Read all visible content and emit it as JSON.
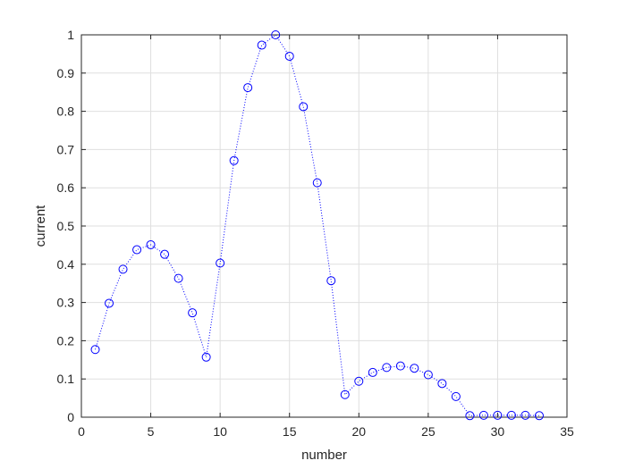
{
  "chart_data": {
    "type": "line",
    "title": "",
    "xlabel": "number",
    "ylabel": "current",
    "xlim": [
      0,
      35
    ],
    "ylim": [
      0,
      1
    ],
    "xticks": [
      0,
      5,
      10,
      15,
      20,
      25,
      30,
      35
    ],
    "yticks": [
      0,
      0.1,
      0.2,
      0.3,
      0.4,
      0.5,
      0.6,
      0.7,
      0.8,
      0.9,
      1
    ],
    "xtick_labels": [
      "0",
      "5",
      "10",
      "15",
      "20",
      "25",
      "30",
      "35"
    ],
    "ytick_labels": [
      "0",
      "0.1",
      "0.2",
      "0.3",
      "0.4",
      "0.5",
      "0.6",
      "0.7",
      "0.8",
      "0.9",
      "1"
    ],
    "grid": true,
    "marker": "circle",
    "line_style": "dotted",
    "series_color": "#0000ff",
    "series": [
      {
        "x": [
          1,
          2,
          3,
          4,
          5,
          6,
          7,
          8,
          9,
          10,
          11,
          12,
          13,
          14,
          15,
          16,
          17,
          18,
          19,
          20,
          21,
          22,
          23,
          24,
          25,
          26,
          27,
          28,
          29,
          30,
          31,
          32,
          33
        ],
        "values": [
          0.177,
          0.298,
          0.387,
          0.438,
          0.451,
          0.426,
          0.363,
          0.273,
          0.157,
          0.403,
          0.671,
          0.862,
          0.973,
          1.0,
          0.944,
          0.812,
          0.613,
          0.357,
          0.059,
          0.094,
          0.117,
          0.13,
          0.134,
          0.128,
          0.111,
          0.088,
          0.054,
          0.004,
          0.005,
          0.005,
          0.005,
          0.005,
          0.004
        ]
      }
    ]
  }
}
